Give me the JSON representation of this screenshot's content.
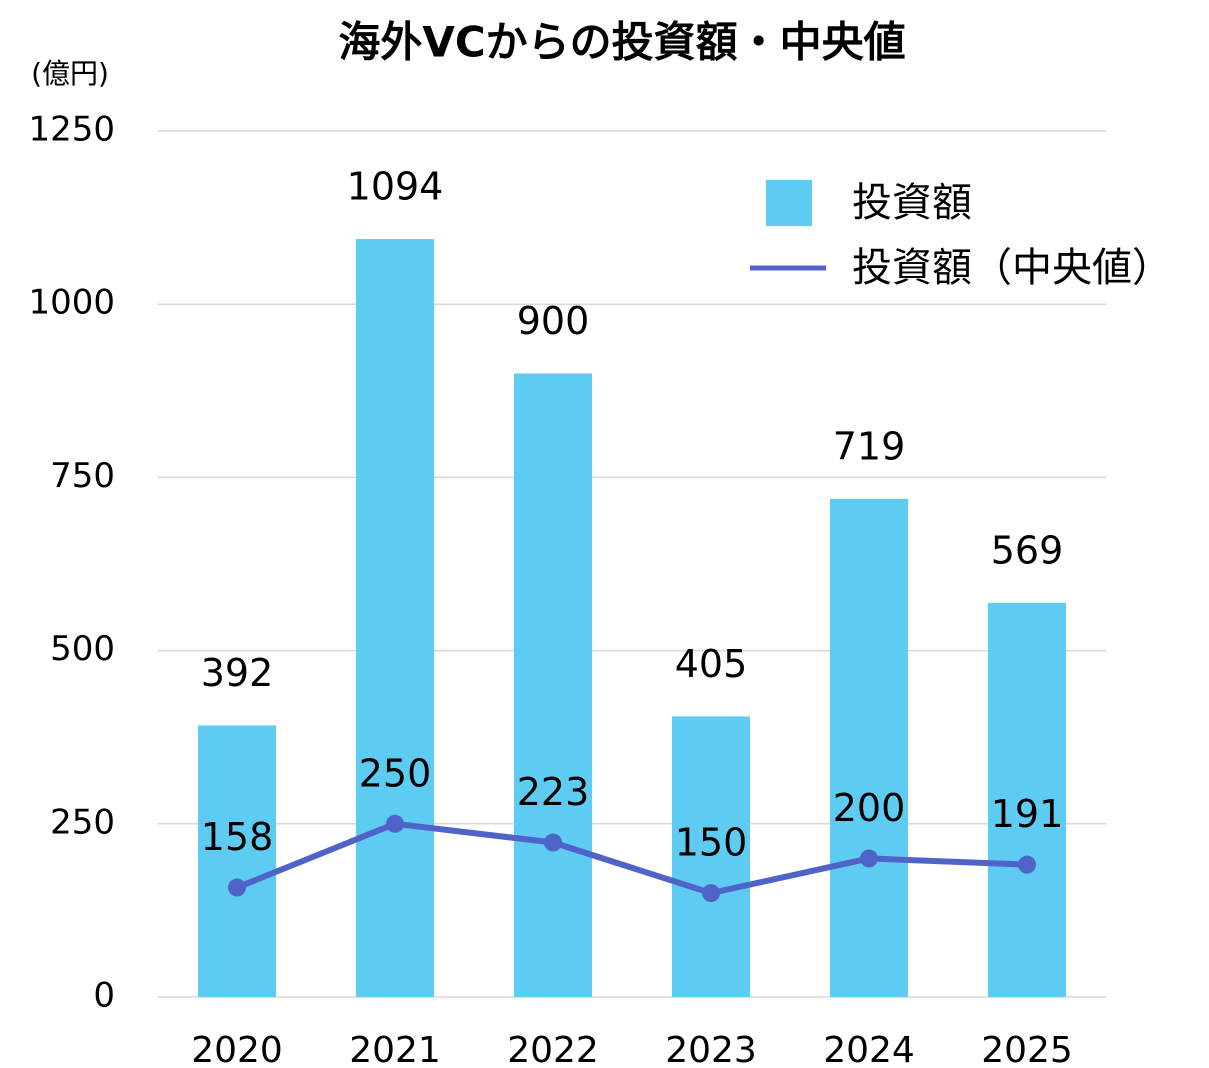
{
  "chart_data": {
    "type": "bar",
    "title": "海外VCからの投資額・中央値",
    "ylabel": "(億円)",
    "categories": [
      "2020",
      "2021",
      "2022",
      "2023",
      "2024",
      "2025"
    ],
    "series": [
      {
        "name": "投資額",
        "type": "bar",
        "color": "#5ecbf2",
        "values": [
          392,
          1094,
          900,
          405,
          719,
          569
        ]
      },
      {
        "name": "投資額（中央値）",
        "type": "line",
        "color": "#4f63c9",
        "values": [
          158,
          250,
          223,
          150,
          200,
          191
        ]
      }
    ],
    "ylim": [
      0,
      1250
    ],
    "yticks": [
      0,
      250,
      500,
      750,
      1000,
      1250
    ],
    "grid": true,
    "legend": "upper right"
  }
}
